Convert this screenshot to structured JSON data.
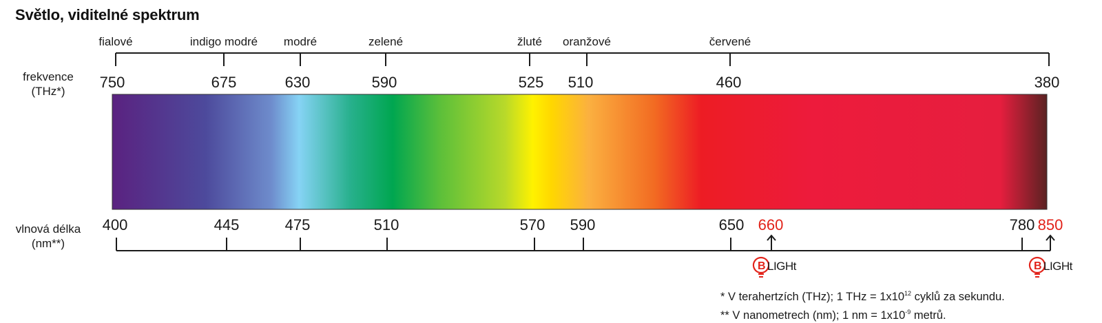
{
  "title": "Světlo, viditelné spektrum",
  "frequency_label": [
    "frekvence",
    "(THz*)"
  ],
  "wavelength_label": [
    "vlnová délka",
    "(nm**)"
  ],
  "color_names": [
    {
      "name": "fialové",
      "tick": false
    },
    {
      "name": "indigo modré",
      "tick": true
    },
    {
      "name": "modré",
      "tick": true
    },
    {
      "name": "zelené",
      "tick": true
    },
    {
      "name": "žluté",
      "tick": true
    },
    {
      "name": "oranžové",
      "tick": true
    },
    {
      "name": "červené",
      "tick": true
    }
  ],
  "frequency_ticks": [
    "750",
    "675",
    "630",
    "590",
    "525",
    "510",
    "460",
    "380"
  ],
  "wavelength_ticks": [
    {
      "value": "400",
      "highlight": false
    },
    {
      "value": "445",
      "highlight": false
    },
    {
      "value": "475",
      "highlight": false
    },
    {
      "value": "510",
      "highlight": false
    },
    {
      "value": "570",
      "highlight": false
    },
    {
      "value": "590",
      "highlight": false
    },
    {
      "value": "650",
      "highlight": false
    },
    {
      "value": "660",
      "highlight": true
    },
    {
      "value": "780",
      "highlight": false
    },
    {
      "value": "850",
      "highlight": true
    }
  ],
  "logo_text": "BLIGHt",
  "notes": {
    "note1_prefix": "* V terahertzích (THz); 1 THz = 1x10",
    "note1_exp": "12",
    "note1_suffix": " cyklů za sekundu.",
    "note2_prefix": "** V nanometrech (nm); 1 nm = 1x10",
    "note2_exp": "-9",
    "note2_suffix": " metrů."
  },
  "colors": {
    "highlight": "#e2231a",
    "axis": "#1a1a1a",
    "spectrum_stops": [
      "#5a2280",
      "#4d4a9c",
      "#6e8ccc",
      "#86d3f5",
      "#27b08c",
      "#00a650",
      "#5bbf3a",
      "#b8d92a",
      "#fff200",
      "#ffd700",
      "#fbb040",
      "#f26b22",
      "#ed1c24",
      "#ed1b3c",
      "#e61e3e",
      "#5a2222"
    ]
  }
}
